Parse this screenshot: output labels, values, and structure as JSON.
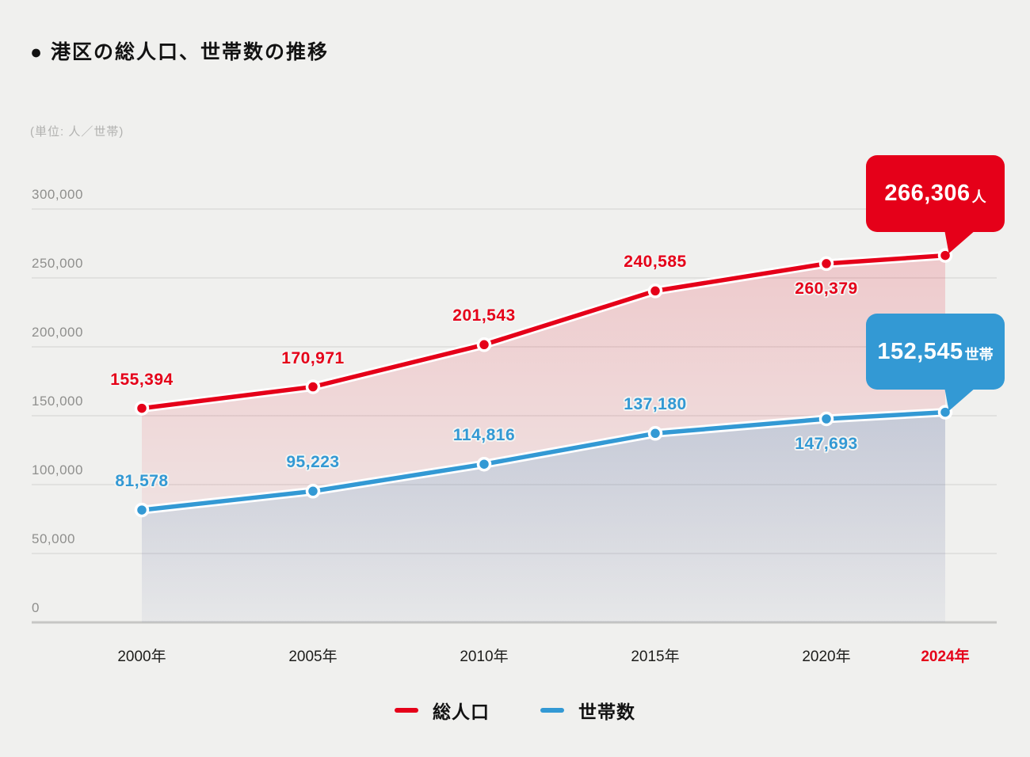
{
  "title": "● 港区の総人口、世帯数の推移",
  "unit_label": "(単位: 人／世帯)",
  "colors": {
    "population_red": "#e50019",
    "household_blue": "#3399d4",
    "background": "#f0f0ee",
    "gridline": "#dcdcda",
    "baseline": "#c6c6c4",
    "axis_text": "#8f8f8d",
    "tick_text": "#1d1d1b"
  },
  "chart_data": {
    "type": "line",
    "title": "港区の総人口、世帯数の推移",
    "unit": "人／世帯",
    "categories": [
      "2000年",
      "2005年",
      "2010年",
      "2015年",
      "2020年",
      "2024年"
    ],
    "highlight_category": "2024年",
    "y_ticks": [
      0,
      50000,
      100000,
      150000,
      200000,
      250000,
      300000
    ],
    "ylim": [
      0,
      300000
    ],
    "grid": true,
    "legend_position": "bottom",
    "series": [
      {
        "name": "総人口",
        "color": "population_red",
        "values": [
          155394,
          170971,
          201543,
          240585,
          260379,
          266306
        ],
        "label_sides": [
          "above",
          "above",
          "above",
          "above",
          "below",
          "callout"
        ],
        "callout": {
          "label": "266,306",
          "suffix": "人"
        }
      },
      {
        "name": "世帯数",
        "color": "household_blue",
        "values": [
          81578,
          95223,
          114816,
          137180,
          147693,
          152545
        ],
        "label_sides": [
          "above",
          "above",
          "above",
          "above",
          "below",
          "callout"
        ],
        "callout": {
          "label": "152,545",
          "suffix": "世帯"
        }
      }
    ]
  }
}
